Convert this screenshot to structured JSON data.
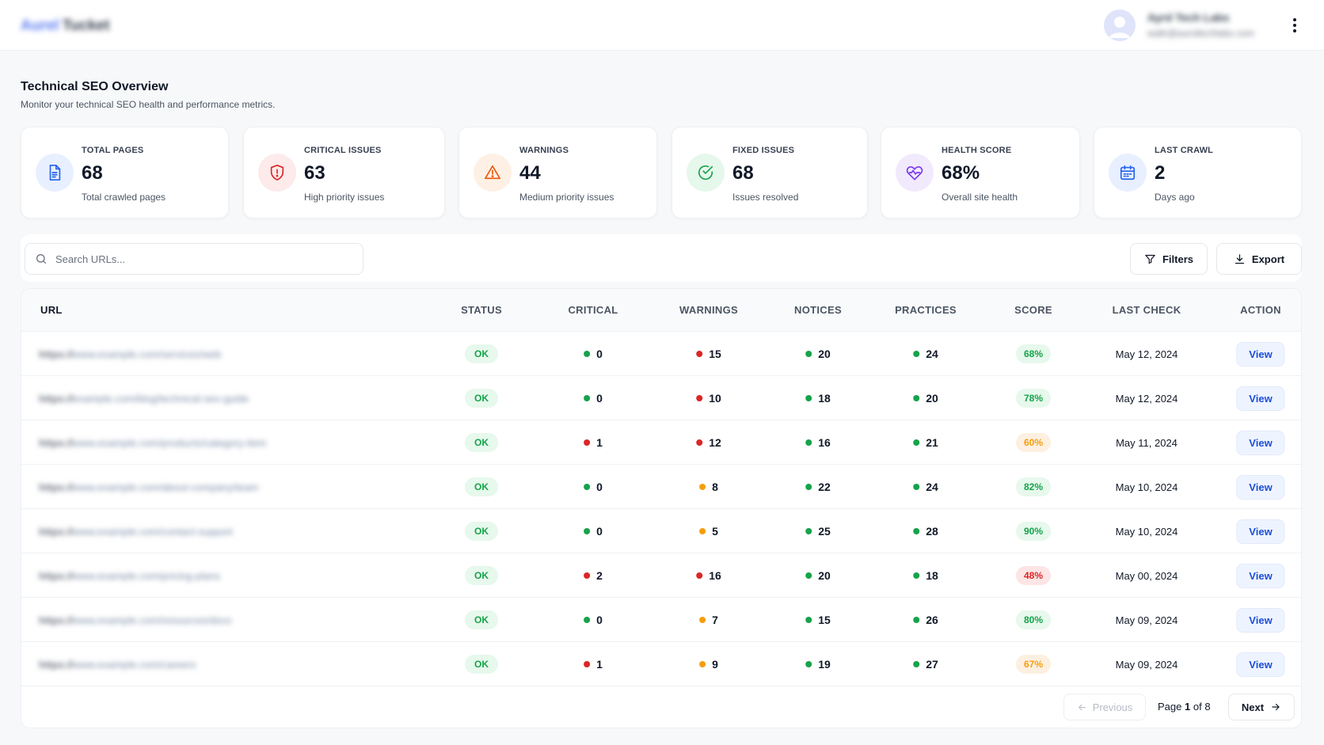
{
  "header": {
    "logo_part1": "Aurel",
    "logo_part2": "Tucket",
    "user_name": "Ayrd Tech Labs",
    "user_email": "waltr@auroltechlabs.com",
    "avatar_icon": "user-avatar-icon",
    "menu_icon": "kebab-menu-icon"
  },
  "page": {
    "title": "Technical SEO Overview",
    "subtitle": "Monitor your technical SEO health and performance metrics."
  },
  "stats": [
    {
      "label": "TOTAL PAGES",
      "value": "68",
      "caption": "Total crawled pages",
      "icon": "document-icon",
      "color": "#2563eb",
      "bg": "#e8efff"
    },
    {
      "label": "CRITICAL ISSUES",
      "value": "63",
      "caption": "High priority issues",
      "icon": "shield-alert-icon",
      "color": "#dc2626",
      "bg": "#fdeaea"
    },
    {
      "label": "WARNINGS",
      "value": "44",
      "caption": "Medium priority issues",
      "icon": "warning-triangle-icon",
      "color": "#ea580c",
      "bg": "#fef0e4"
    },
    {
      "label": "FIXED ISSUES",
      "value": "68",
      "caption": "Issues resolved",
      "icon": "check-circle-icon",
      "color": "#16a34a",
      "bg": "#e6f7ec"
    },
    {
      "label": "HEALTH SCORE",
      "value": "68%",
      "caption": "Overall site health",
      "icon": "heart-pulse-icon",
      "color": "#7c3aed",
      "bg": "#f1eafd"
    },
    {
      "label": "LAST CRAWL",
      "value": "2",
      "caption": "Days ago",
      "icon": "calendar-icon",
      "color": "#2563eb",
      "bg": "#e8efff"
    }
  ],
  "toolbar": {
    "search_placeholder": "Search URLs...",
    "filters_label": "Filters",
    "export_label": "Export"
  },
  "table": {
    "columns": [
      "URL",
      "STATUS",
      "CRITICAL",
      "WARNINGS",
      "NOTICES",
      "PRACTICES",
      "SCORE",
      "LAST CHECK",
      "ACTION"
    ],
    "rows": [
      {
        "url_proto": "https://",
        "url_path": "www.example.com/services/web",
        "status": "OK",
        "critical": "0",
        "warnings": "15",
        "notices": "20",
        "practices": "24",
        "score": "68%",
        "last_check": "May 12, 2024",
        "action": "View"
      },
      {
        "url_proto": "https://",
        "url_path": "example.com/blog/technical-seo-guide",
        "status": "OK",
        "critical": "0",
        "warnings": "10",
        "notices": "18",
        "practices": "20",
        "score": "78%",
        "last_check": "May 12, 2024",
        "action": "View"
      },
      {
        "url_proto": "https://",
        "url_path": "www.example.com/products/category-item",
        "status": "OK",
        "critical": "1",
        "warnings": "12",
        "notices": "16",
        "practices": "21",
        "score": "60%",
        "last_check": "May 11, 2024",
        "action": "View"
      },
      {
        "url_proto": "https://",
        "url_path": "www.example.com/about-company/team",
        "status": "OK",
        "critical": "0",
        "warnings": "8",
        "notices": "22",
        "practices": "24",
        "score": "82%",
        "last_check": "May 10, 2024",
        "action": "View"
      },
      {
        "url_proto": "https://",
        "url_path": "www.example.com/contact-support",
        "status": "OK",
        "critical": "0",
        "warnings": "5",
        "notices": "25",
        "practices": "28",
        "score": "90%",
        "last_check": "May 10, 2024",
        "action": "View"
      },
      {
        "url_proto": "https://",
        "url_path": "www.example.com/pricing-plans",
        "status": "OK",
        "critical": "2",
        "warnings": "16",
        "notices": "20",
        "practices": "18",
        "score": "48%",
        "last_check": "May 00, 2024",
        "action": "View"
      },
      {
        "url_proto": "https://",
        "url_path": "www.example.com/resources/docs",
        "status": "OK",
        "critical": "0",
        "warnings": "7",
        "notices": "15",
        "practices": "26",
        "score": "80%",
        "last_check": "May 09, 2024",
        "action": "View"
      },
      {
        "url_proto": "https://",
        "url_path": "www.example.com/careers",
        "status": "OK",
        "critical": "1",
        "warnings": "9",
        "notices": "19",
        "practices": "27",
        "score": "67%",
        "last_check": "May 09, 2024",
        "action": "View"
      }
    ]
  },
  "pagination": {
    "prev_label": "Previous",
    "page_word": "Page",
    "current_page": "1",
    "of_word": "of",
    "total_pages": "8",
    "next_label": "Next"
  },
  "colors": {
    "ok_green": "#16a34a",
    "danger_red": "#dc2626",
    "warn_orange": "#f59e0b",
    "accent_blue": "#1d4ed8"
  }
}
